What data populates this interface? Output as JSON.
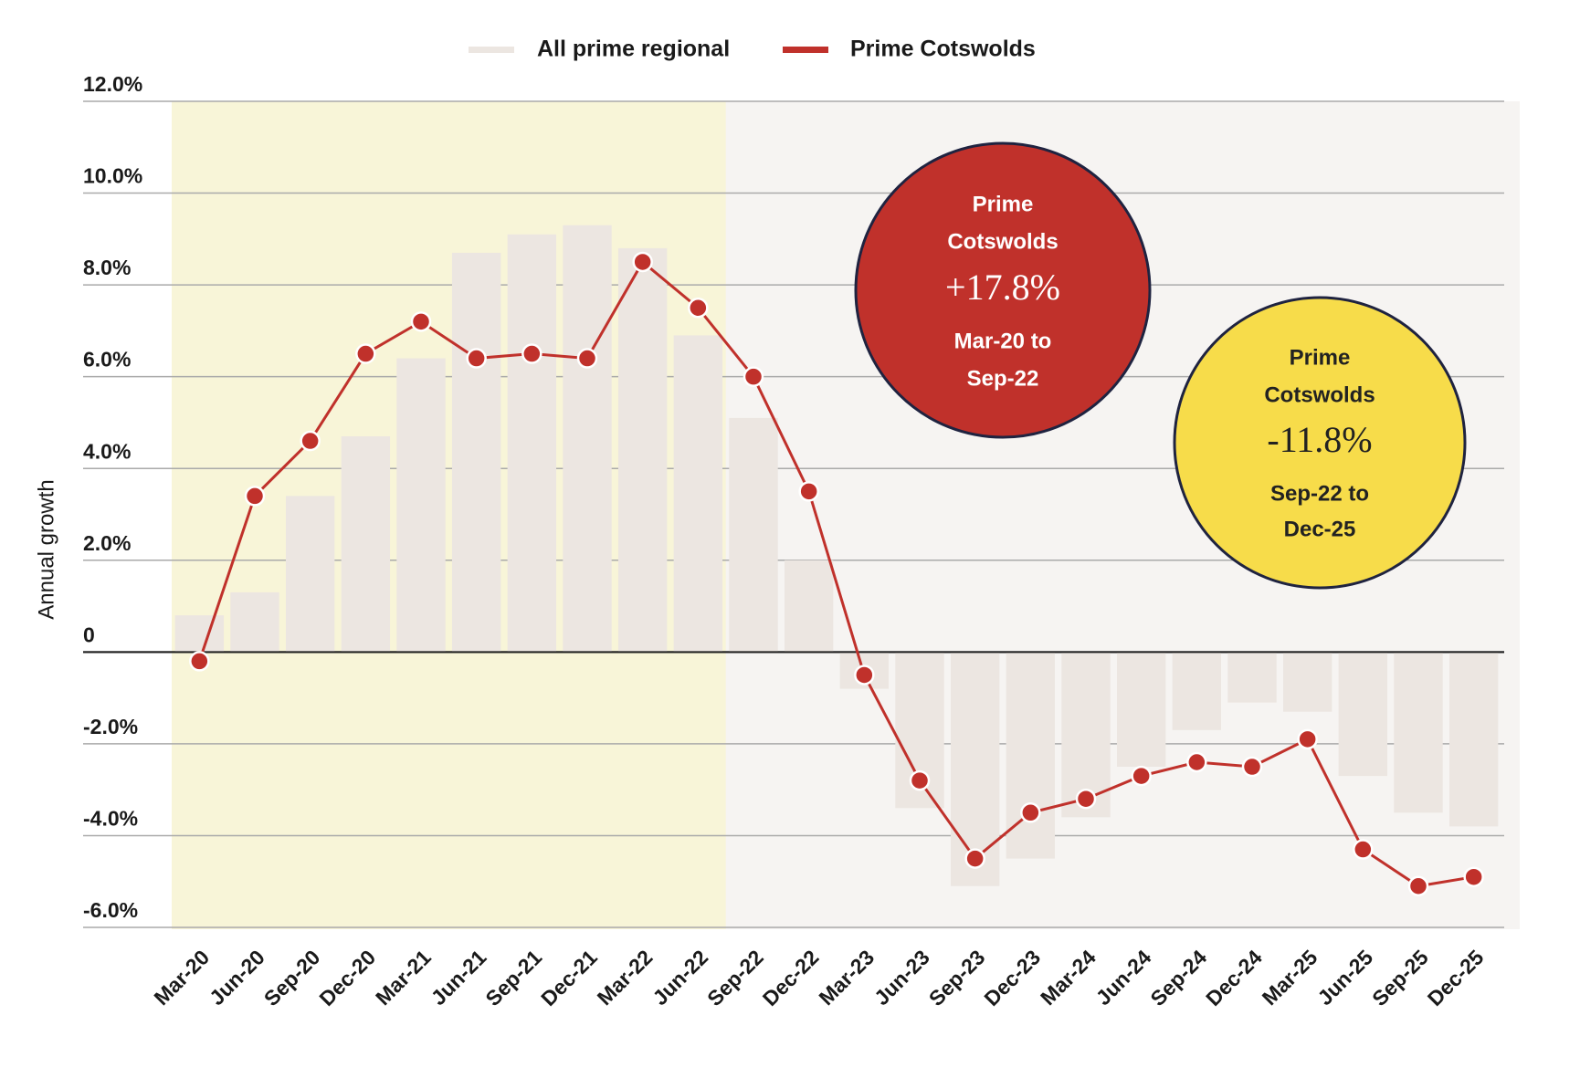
{
  "chart_data": {
    "type": "bar-line",
    "y_label": "Annual growth",
    "categories": [
      "Mar-20",
      "Jun-20",
      "Sep-20",
      "Dec-20",
      "Mar-21",
      "Jun-21",
      "Sep-21",
      "Dec-21",
      "Mar-22",
      "Jun-22",
      "Sep-22",
      "Dec-22",
      "Mar-23",
      "Jun-23",
      "Sep-23",
      "Dec-23",
      "Mar-24",
      "Jun-24",
      "Sep-24",
      "Dec-24",
      "Mar-25",
      "Jun-25",
      "Sep-25",
      "Dec-25"
    ],
    "series": [
      {
        "name": "All prime regional",
        "type": "bar",
        "color": "#ece6e1",
        "values": [
          0.8,
          1.3,
          3.4,
          4.7,
          6.4,
          8.7,
          9.1,
          9.3,
          8.8,
          6.9,
          5.1,
          2.0,
          -0.8,
          -3.4,
          -5.1,
          -4.5,
          -3.6,
          -2.5,
          -1.7,
          -1.1,
          -1.3,
          -2.7,
          -3.5,
          -3.8
        ]
      },
      {
        "name": "Prime Cotswolds",
        "type": "line",
        "color": "#c0312b",
        "values": [
          -0.2,
          3.4,
          4.6,
          6.5,
          7.2,
          6.4,
          6.5,
          6.4,
          8.5,
          7.5,
          6.0,
          3.5,
          -0.5,
          -2.8,
          -4.5,
          -3.5,
          -3.2,
          -2.7,
          -2.4,
          -2.5,
          -1.9,
          -4.3,
          -5.1,
          -4.9
        ]
      }
    ],
    "ylim": [
      -6,
      12
    ],
    "yticks": [
      {
        "value": -6,
        "label": "-6.0%"
      },
      {
        "value": -4,
        "label": "-4.0%"
      },
      {
        "value": -2,
        "label": "-2.0%"
      },
      0,
      {
        "value": 2,
        "label": "2.0%"
      },
      {
        "value": 4,
        "label": "4.0%"
      },
      {
        "value": 6,
        "label": "6.0%"
      },
      {
        "value": 8,
        "label": "8.0%"
      },
      {
        "value": 10,
        "label": "10.0%"
      },
      {
        "value": 12,
        "label": "12.0%"
      }
    ],
    "grid": true,
    "shaded_span": [
      "Mar-20",
      "Jun-22"
    ],
    "annotations": [
      {
        "lines": [
          "Prime",
          "Cotswolds"
        ],
        "value": "+17.8%",
        "period": [
          "Mar-20 to",
          "Sep-22"
        ],
        "color": "#c0312b"
      },
      {
        "lines": [
          "Prime",
          "Cotswolds"
        ],
        "value": "-11.8%",
        "period": [
          "Sep-22 to",
          "Dec-25"
        ],
        "color": "#f7dc4a"
      }
    ]
  }
}
